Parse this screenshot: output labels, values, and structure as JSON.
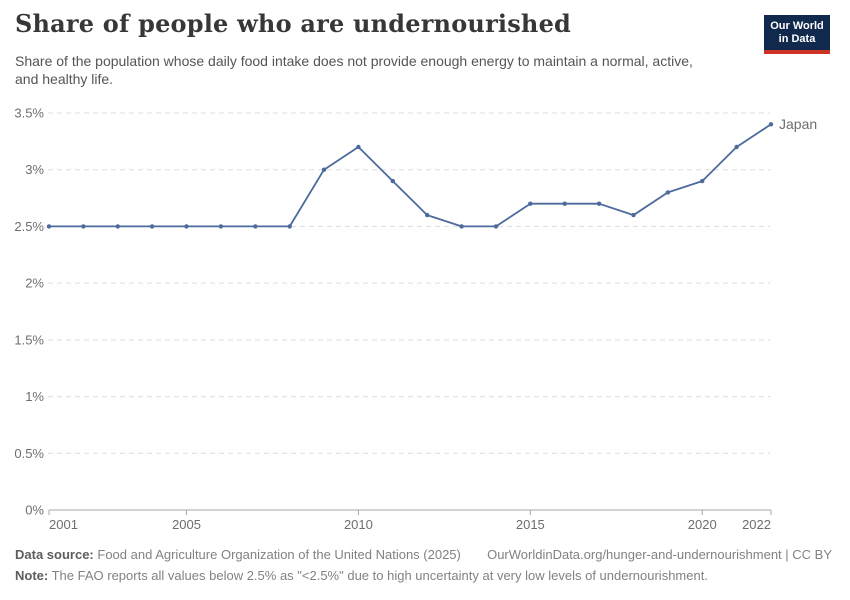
{
  "header": {
    "title": "Share of people who are undernourished",
    "subtitle_line1": "Share of the population whose daily food intake does not provide enough energy to maintain a normal, active,",
    "subtitle_line2": "and healthy life.",
    "logo": {
      "line1": "Our World",
      "line2": "in Data",
      "bg_color": "#12294E",
      "bar_color": "#CC3225"
    }
  },
  "chart_data": {
    "type": "line",
    "title": "Share of people who are undernourished",
    "x": [
      2001,
      2002,
      2003,
      2004,
      2005,
      2006,
      2007,
      2008,
      2009,
      2010,
      2011,
      2012,
      2013,
      2014,
      2015,
      2016,
      2017,
      2018,
      2019,
      2020,
      2021,
      2022
    ],
    "series": [
      {
        "name": "Japan",
        "color": "#4C6A9C",
        "values": [
          2.5,
          2.5,
          2.5,
          2.5,
          2.5,
          2.5,
          2.5,
          2.5,
          3.0,
          3.2,
          2.9,
          2.6,
          2.5,
          2.5,
          2.7,
          2.7,
          2.7,
          2.6,
          2.8,
          2.9,
          3.2,
          3.4
        ]
      }
    ],
    "xlim": [
      2001,
      2022
    ],
    "ylim": [
      0,
      3.5
    ],
    "x_tick_labels": [
      "2001",
      "2005",
      "2010",
      "2015",
      "2020",
      "2022"
    ],
    "x_tick_values": [
      2001,
      2005,
      2010,
      2015,
      2020,
      2022
    ],
    "y_tick_labels": [
      "0%",
      "0.5%",
      "1%",
      "1.5%",
      "2%",
      "2.5%",
      "3%",
      "3.5%"
    ],
    "y_tick_values": [
      0,
      0.5,
      1,
      1.5,
      2,
      2.5,
      3,
      3.5
    ],
    "grid": "horizontal-dashed",
    "legend": "end-of-line-label",
    "end_label": "Japan",
    "grid_color": "#dcdcdc",
    "axis_color": "#a7a7a7",
    "tick_label_color": "#6e6e6e"
  },
  "footer": {
    "data_source_label": "Data source:",
    "data_source_value": "Food and Agriculture Organization of the United Nations (2025)",
    "link": "OurWorldinData.org/hunger-and-undernourishment | CC BY",
    "note_label": "Note:",
    "note_value": "The FAO reports all values below 2.5% as \"<2.5%\" due to high uncertainty at very low levels of undernourishment."
  }
}
